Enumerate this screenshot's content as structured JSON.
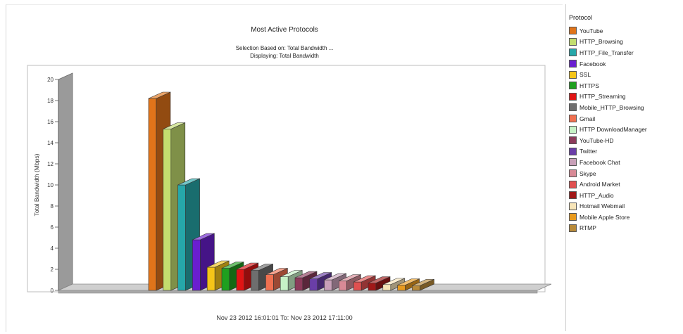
{
  "chart_data": {
    "type": "bar",
    "title": "Most Active Protocols",
    "subtitle": "Selection Based on: Total Bandwidth ...",
    "subtitle2": "Displaying: Total Bandwidth",
    "ylabel": "Total Bandwidth (Mbps)",
    "xlabel": "",
    "ylim": [
      0,
      20
    ],
    "yticks": [
      0,
      2,
      4,
      6,
      8,
      10,
      12,
      14,
      16,
      18,
      20
    ],
    "grid": false,
    "legend_title": "Protocol",
    "legend_position": "right",
    "date_range": "Nov 23 2012  16:01:01  To: Nov 23 2012  17:11:00",
    "series": [
      {
        "name": "YouTube",
        "value": 18.2,
        "color": "#e0741a"
      },
      {
        "name": "HTTP_Browsing",
        "value": 15.3,
        "color": "#c3dd6e"
      },
      {
        "name": "HTTP_File_Transfer",
        "value": 10.0,
        "color": "#26a7a9"
      },
      {
        "name": "Facebook",
        "value": 4.8,
        "color": "#6a1fd0"
      },
      {
        "name": "SSL",
        "value": 2.2,
        "color": "#f5c518"
      },
      {
        "name": "HTTPS",
        "value": 2.1,
        "color": "#1fa01f"
      },
      {
        "name": "HTTP_Streaming",
        "value": 2.0,
        "color": "#e01414"
      },
      {
        "name": "Mobile_HTTP_Browsing",
        "value": 1.9,
        "color": "#6e6e6e"
      },
      {
        "name": "Gmail",
        "value": 1.5,
        "color": "#f07050"
      },
      {
        "name": "HTTP DownloadManager",
        "value": 1.3,
        "color": "#c6f2c6"
      },
      {
        "name": "YouTube-HD",
        "value": 1.2,
        "color": "#8c3a5a"
      },
      {
        "name": "Twitter",
        "value": 1.1,
        "color": "#6a3ea8"
      },
      {
        "name": "Facebook Chat",
        "value": 1.0,
        "color": "#c8a0b8"
      },
      {
        "name": "Skype",
        "value": 0.9,
        "color": "#d88a96"
      },
      {
        "name": "Android Market",
        "value": 0.8,
        "color": "#e05050"
      },
      {
        "name": "HTTP_Audio",
        "value": 0.7,
        "color": "#a01818"
      },
      {
        "name": "Hotmail Webmail",
        "value": 0.55,
        "color": "#f6e4b8"
      },
      {
        "name": "Mobile Apple Store",
        "value": 0.5,
        "color": "#e89a1e"
      },
      {
        "name": "RTMP",
        "value": 0.45,
        "color": "#b88a3a"
      }
    ]
  }
}
